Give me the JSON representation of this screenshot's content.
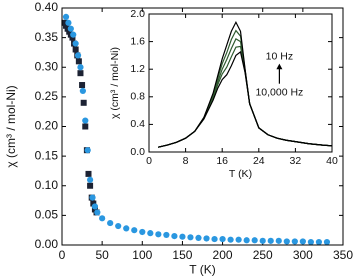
{
  "chart_data": [
    {
      "type": "scatter",
      "xlabel": "T (K)",
      "ylabel": "χ (cm³ / mol-Ni)",
      "xlim": [
        0,
        350
      ],
      "xticks": [
        0,
        50,
        100,
        150,
        200,
        250,
        300,
        350
      ],
      "ylim": [
        0,
        0.4
      ],
      "yticks": [
        {
          "value": 0,
          "label": "0.00"
        },
        {
          "value": 0.05,
          "label": "0.05"
        },
        {
          "value": 0.1,
          "label": "0.10"
        },
        {
          "value": 0.15,
          "label": "0.15"
        },
        {
          "value": 0.2,
          "label": "0.20"
        },
        {
          "value": 0.25,
          "label": "0.25"
        },
        {
          "value": 0.3,
          "label": "0.30"
        },
        {
          "value": 0.35,
          "label": "0.35"
        },
        {
          "value": 0.4,
          "label": "0.40"
        }
      ],
      "series": [
        {
          "color": "#1c2233",
          "marker": "square",
          "x": [
            3,
            5,
            7,
            9,
            11,
            13,
            15,
            17,
            19,
            21,
            23,
            25,
            27,
            29,
            31,
            33,
            35,
            37,
            39,
            41,
            43
          ],
          "values": [
            0.375,
            0.37,
            0.365,
            0.36,
            0.355,
            0.35,
            0.34,
            0.33,
            0.32,
            0.31,
            0.29,
            0.27,
            0.24,
            0.2,
            0.16,
            0.12,
            0.1,
            0.08,
            0.07,
            0.06,
            0.055
          ]
        },
        {
          "color": "#2a97e0",
          "marker": "circle",
          "x": [
            5,
            8,
            11,
            14,
            17,
            20,
            23,
            26,
            29,
            32,
            35,
            38,
            41,
            44,
            50,
            60,
            70,
            80,
            90,
            100,
            110,
            120,
            130,
            140,
            150,
            160,
            170,
            180,
            190,
            200,
            210,
            220,
            230,
            240,
            250,
            260,
            270,
            280,
            290,
            300,
            310,
            320,
            330
          ],
          "values": [
            0.385,
            0.375,
            0.365,
            0.355,
            0.34,
            0.32,
            0.3,
            0.26,
            0.21,
            0.16,
            0.11,
            0.08,
            0.065,
            0.055,
            0.045,
            0.037,
            0.032,
            0.028,
            0.025,
            0.022,
            0.02,
            0.018,
            0.017,
            0.015,
            0.014,
            0.013,
            0.012,
            0.011,
            0.01,
            0.01,
            0.009,
            0.009,
            0.008,
            0.008,
            0.007,
            0.007,
            0.007,
            0.006,
            0.006,
            0.006,
            0.005,
            0.005,
            0.005
          ]
        }
      ]
    },
    {
      "type": "line",
      "xlabel": "T (K)",
      "ylabel": "χ (cm³ / mol-Ni)",
      "xlim": [
        0,
        40
      ],
      "xticks": [
        0,
        8,
        16,
        24,
        32,
        40
      ],
      "ylim": [
        0,
        2
      ],
      "yticks": [
        {
          "value": 0,
          "label": "0.0"
        },
        0.4,
        0.8,
        1.2,
        1.6,
        {
          "value": 2,
          "label": "2.0"
        }
      ],
      "annotations": [
        "10 Hz",
        "10,000 Hz"
      ],
      "x": [
        2,
        4,
        6,
        8,
        10,
        12,
        14,
        15,
        16,
        17,
        18,
        19,
        20,
        21,
        22,
        24,
        26,
        28,
        30,
        32,
        35,
        38,
        40
      ],
      "series": [
        {
          "color": "#2f5a2f",
          "values": [
            0.07,
            0.1,
            0.14,
            0.2,
            0.3,
            0.5,
            0.83,
            1.06,
            1.28,
            1.44,
            1.63,
            1.76,
            1.68,
            1.19,
            0.7,
            0.35,
            0.25,
            0.2,
            0.17,
            0.15,
            0.12,
            0.1,
            0.09
          ]
        },
        {
          "color": "#2f5a2f",
          "values": [
            0.07,
            0.1,
            0.14,
            0.2,
            0.3,
            0.49,
            0.8,
            1.01,
            1.2,
            1.34,
            1.5,
            1.64,
            1.6,
            1.18,
            0.7,
            0.35,
            0.25,
            0.2,
            0.17,
            0.15,
            0.12,
            0.1,
            0.09
          ]
        },
        {
          "color": "#2f5a2f",
          "values": [
            0.07,
            0.1,
            0.14,
            0.2,
            0.3,
            0.48,
            0.78,
            0.97,
            1.13,
            1.23,
            1.38,
            1.52,
            1.53,
            1.16,
            0.7,
            0.35,
            0.25,
            0.2,
            0.17,
            0.15,
            0.12,
            0.1,
            0.09
          ]
        },
        {
          "color": "#000000",
          "values": [
            0.07,
            0.1,
            0.14,
            0.2,
            0.3,
            0.5,
            0.85,
            1.1,
            1.35,
            1.55,
            1.75,
            1.88,
            1.75,
            1.2,
            0.7,
            0.35,
            0.25,
            0.2,
            0.17,
            0.15,
            0.12,
            0.1,
            0.09
          ]
        },
        {
          "color": "#000000",
          "values": [
            0.07,
            0.1,
            0.14,
            0.2,
            0.3,
            0.48,
            0.75,
            0.92,
            1.05,
            1.12,
            1.25,
            1.4,
            1.45,
            1.15,
            0.7,
            0.35,
            0.25,
            0.2,
            0.17,
            0.15,
            0.12,
            0.1,
            0.09
          ]
        }
      ]
    }
  ]
}
